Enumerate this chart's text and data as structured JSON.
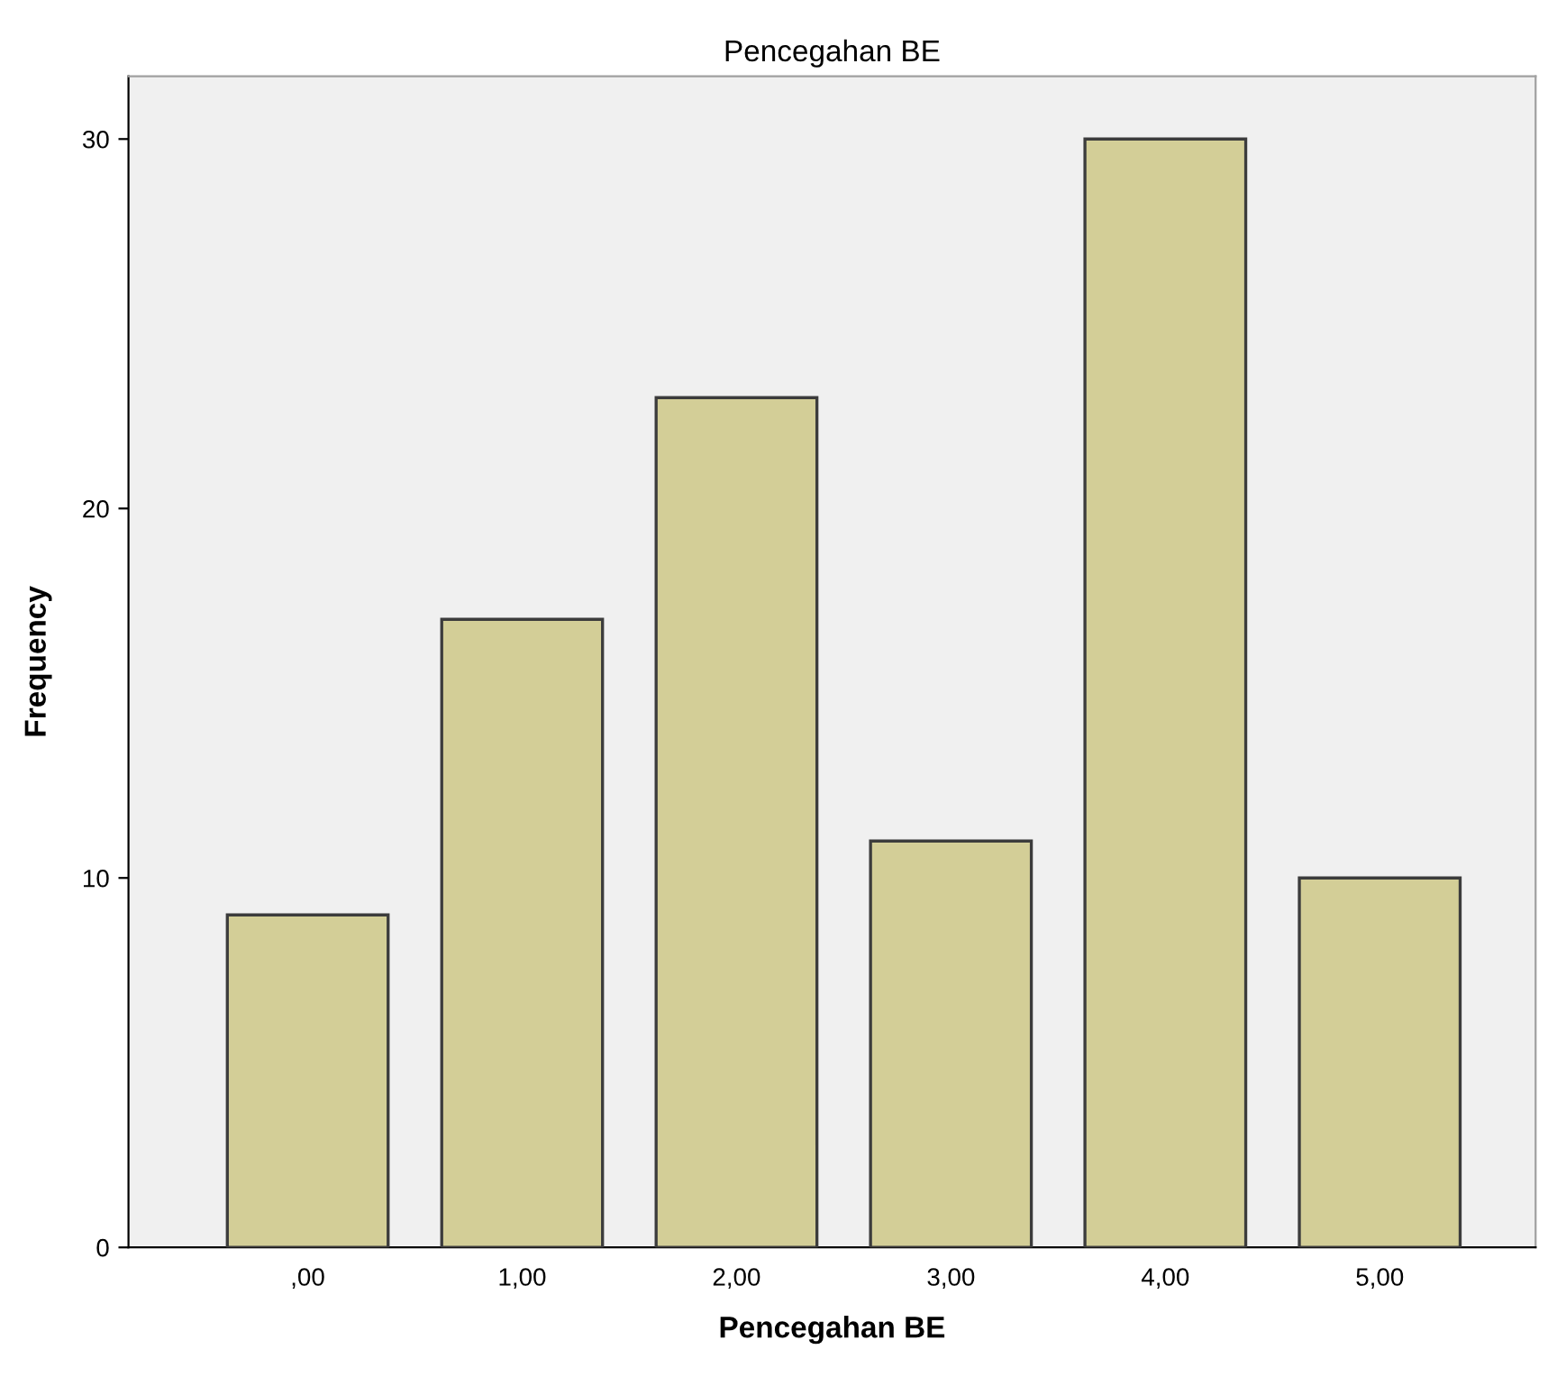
{
  "chart_data": {
    "type": "bar",
    "title": "Pencegahan BE",
    "xlabel": "Pencegahan BE",
    "ylabel": "Frequency",
    "categories": [
      ",00",
      "1,00",
      "2,00",
      "3,00",
      "4,00",
      "5,00"
    ],
    "values": [
      9,
      17,
      23,
      11,
      30,
      10
    ],
    "color": "#d3ce97",
    "ylim": [
      0,
      31.7
    ],
    "yticks": [
      0,
      10,
      20,
      30
    ],
    "grid": false,
    "legend": false
  }
}
